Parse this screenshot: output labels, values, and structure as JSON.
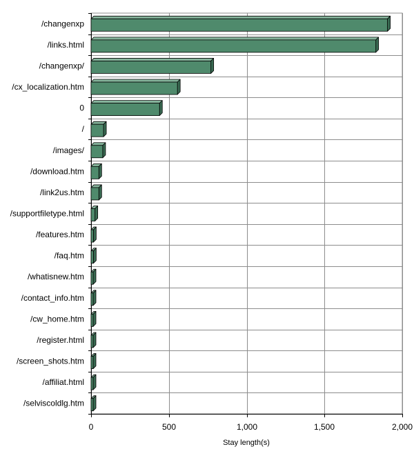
{
  "chart_data": {
    "type": "bar",
    "orientation": "horizontal",
    "style": "3d",
    "categories": [
      "/changenxp",
      "/links.html",
      "/changenxp/",
      "/cx_localization.htm",
      "0",
      "/",
      "/images/",
      "/download.htm",
      "/link2us.htm",
      "/supportfiletype.html",
      "/features.htm",
      "/faq.htm",
      "/whatisnew.htm",
      "/contact_info.htm",
      "/cw_home.htm",
      "/register.html",
      "/screen_shots.htm",
      "/affiliat.html",
      "/selviscoldlg.htm"
    ],
    "values": [
      1905,
      1830,
      770,
      555,
      440,
      80,
      75,
      50,
      50,
      25,
      15,
      15,
      12,
      12,
      5,
      5,
      5,
      5,
      5
    ],
    "xlabel": "Stay length(s)",
    "ylabel": "",
    "xlim": [
      0,
      2000
    ],
    "xticks": [
      0,
      500,
      1000,
      1500,
      2000
    ],
    "xtick_labels": [
      "0",
      "500",
      "1,000",
      "1,500",
      "2,000"
    ],
    "grid": true,
    "bar_color": "#4f8a6c",
    "bar_top_color": "#86b49c",
    "bar_side_color": "#3a6b53"
  }
}
